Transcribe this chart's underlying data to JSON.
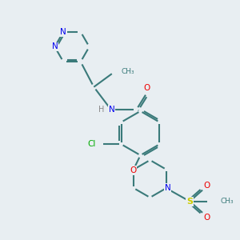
{
  "background_color": "#e8eef2",
  "bond_color": "#3a7a7a",
  "bond_width": 1.5,
  "atom_colors": {
    "N": "#0000ee",
    "O": "#ee0000",
    "S": "#cccc00",
    "Cl": "#00aa00",
    "C": "#3a7a7a",
    "H": "#888888"
  },
  "figsize": [
    3.0,
    3.0
  ],
  "dpi": 100
}
